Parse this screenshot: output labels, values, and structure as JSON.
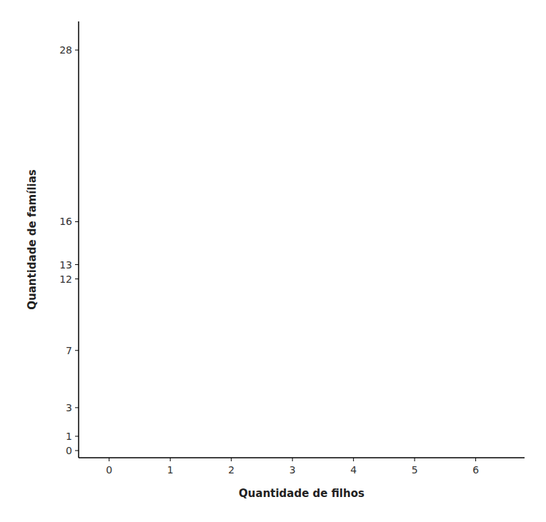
{
  "chart_data": {
    "type": "scatter",
    "xlabel": "Quantidade de filhos",
    "ylabel": "Quantidade de famílias",
    "xlim": [
      -0.5,
      6.8
    ],
    "ylim": [
      -0.5,
      30
    ],
    "xticks": [
      0,
      1,
      2,
      3,
      4,
      5,
      6
    ],
    "yticks": [
      0,
      1,
      3,
      7,
      12,
      13,
      16,
      28
    ],
    "grid": false,
    "color": "#000000"
  }
}
